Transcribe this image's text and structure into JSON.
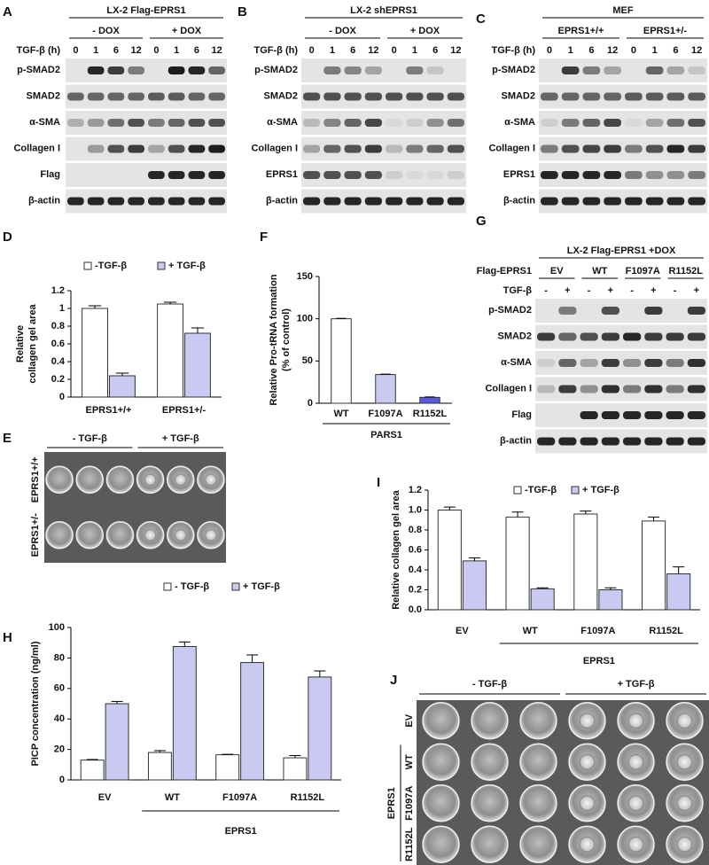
{
  "blots": [
    {
      "letter": "A",
      "title": "LX-2 Flag-EPRS1",
      "groups": [
        "- DOX",
        "+ DOX"
      ],
      "lane_header": "TGF-β (h)",
      "lanes": [
        "0",
        "1",
        "6",
        "12",
        "0",
        "1",
        "6",
        "12"
      ],
      "rows": [
        "p-SMAD2",
        "SMAD2",
        "α-SMA",
        "Collagen I",
        "Flag",
        "β-actin"
      ]
    },
    {
      "letter": "B",
      "title": "LX-2 shEPRS1",
      "groups": [
        "- DOX",
        "+ DOX"
      ],
      "lane_header": "TGF-β (h)",
      "lanes": [
        "0",
        "1",
        "6",
        "12",
        "0",
        "1",
        "6",
        "12"
      ],
      "rows": [
        "p-SMAD2",
        "SMAD2",
        "α-SMA",
        "Collagen I",
        "EPRS1",
        "β-actin"
      ]
    },
    {
      "letter": "C",
      "title": "MEF",
      "groups": [
        "EPRS1+/+",
        "EPRS1+/-"
      ],
      "lane_header": "TGF-β (h)",
      "lanes": [
        "0",
        "1",
        "6",
        "12",
        "0",
        "1",
        "6",
        "12"
      ],
      "rows": [
        "p-SMAD2",
        "SMAD2",
        "α-SMA",
        "Collagen I",
        "EPRS1",
        "β-actin"
      ]
    },
    {
      "letter": "G",
      "title": "LX-2 Flag-EPRS1 +DOX",
      "group_header": "Flag-EPRS1",
      "groups": [
        "EV",
        "WT",
        "F1097A",
        "R1152L"
      ],
      "lane_header": "TGF-β",
      "lanes": [
        "-",
        "+",
        "-",
        "+",
        "-",
        "+",
        "-",
        "+"
      ],
      "rows": [
        "p-SMAD2",
        "SMAD2",
        "α-SMA",
        "Collagen I",
        "Flag",
        "β-actin"
      ]
    }
  ],
  "photos": [
    {
      "letter": "E",
      "columns": [
        "- TGF-β",
        "+ TGF-β"
      ],
      "rows": [
        "EPRS1+/+",
        "EPRS1+/-"
      ]
    },
    {
      "letter": "J",
      "columns": [
        "- TGF-β",
        "+ TGF-β"
      ],
      "rows": [
        "EV",
        "WT",
        "F1097A",
        "R1152L"
      ],
      "row_group": "EPRS1"
    }
  ],
  "chart_data": [
    {
      "type": "bar",
      "letter": "D",
      "y_label": [
        "Relative",
        "collagen gel area"
      ],
      "categories": [
        "EPRS1+/+",
        "EPRS1+/-"
      ],
      "series": [
        {
          "name": "-TGF-β",
          "color": "#ffffff",
          "values": [
            1.0,
            1.05
          ],
          "errors": [
            0.03,
            0.02
          ]
        },
        {
          "name": "+ TGF-β",
          "color": "#c9c9f2",
          "values": [
            0.24,
            0.72
          ],
          "errors": [
            0.03,
            0.06
          ]
        }
      ],
      "ylim": [
        0,
        1.2
      ],
      "yticks": [
        0,
        0.2,
        0.4,
        0.6,
        0.8,
        1,
        1.2
      ]
    },
    {
      "type": "bar",
      "letter": "F",
      "y_label": [
        "Relative Pro-tRNA formation",
        "(% of control)"
      ],
      "categories": [
        "WT",
        "F1097A",
        "R1152L"
      ],
      "values": [
        100,
        34,
        7
      ],
      "errors": [
        0.5,
        0.5,
        0.5
      ],
      "colors": [
        "#ffffff",
        "#c9c9f2",
        "#5a5ae0"
      ],
      "group_label": "PARS1",
      "ylim": [
        0,
        150
      ],
      "yticks": [
        0,
        50,
        100,
        150
      ]
    },
    {
      "type": "bar",
      "letter": "H",
      "y_label": [
        "PICP concentration (ng/ml)"
      ],
      "categories": [
        "EV",
        "WT",
        "F1097A",
        "R1152L"
      ],
      "group_label": "EPRS1",
      "series": [
        {
          "name": "- TGF-β",
          "color": "#ffffff",
          "values": [
            13,
            18,
            16.5,
            14.5
          ],
          "errors": [
            0.4,
            1.2,
            0.3,
            1.5
          ]
        },
        {
          "name": "+ TGF-β",
          "color": "#c9c9f2",
          "values": [
            50,
            87.5,
            77,
            67.5
          ],
          "errors": [
            1.5,
            3,
            5,
            4
          ]
        }
      ],
      "ylim": [
        0,
        100
      ],
      "yticks": [
        0,
        20,
        40,
        60,
        80,
        100
      ]
    },
    {
      "type": "bar",
      "letter": "I",
      "y_label": [
        "Relative collagen gel area"
      ],
      "categories": [
        "EV",
        "WT",
        "F1097A",
        "R1152L"
      ],
      "group_label": "EPRS1",
      "series": [
        {
          "name": "-TGF-β",
          "color": "#ffffff",
          "values": [
            1.0,
            0.93,
            0.96,
            0.89
          ],
          "errors": [
            0.03,
            0.05,
            0.03,
            0.04
          ]
        },
        {
          "name": "+ TGF-β",
          "color": "#c9c9f2",
          "values": [
            0.49,
            0.21,
            0.2,
            0.36
          ],
          "errors": [
            0.03,
            0.01,
            0.02,
            0.07
          ]
        }
      ],
      "ylim": [
        0,
        1.2
      ],
      "yticks": [
        {
          "value": 0,
          "label": "0.0"
        },
        0.2,
        0.4,
        0.6,
        0.8,
        {
          "value": 1,
          "label": "1.0"
        },
        1.2
      ]
    }
  ]
}
